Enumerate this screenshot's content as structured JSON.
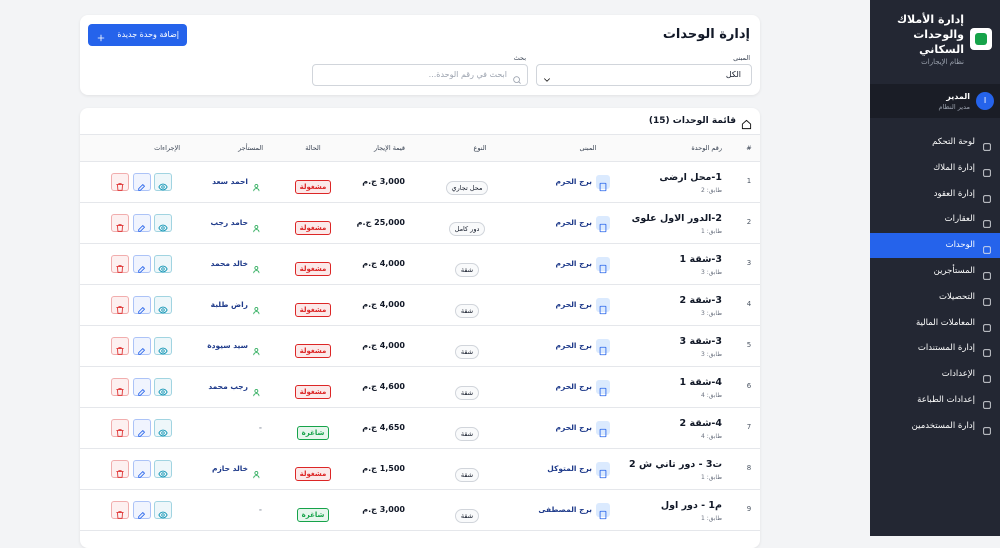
{
  "sidebar": {
    "title": "إدارة الأملاك والوحدات السكاني",
    "subtitle": "نظام الإيجارات",
    "user": {
      "initial": "I",
      "name": "المدير",
      "role": "مدير النظام"
    },
    "nav": [
      "لوحة التحكم",
      "إدارة الملاك",
      "إدارة العقود",
      "العقارات",
      "الوحدات",
      "المستأجرين",
      "التحصيلات",
      "المعاملات المالية",
      "إدارة المستندات",
      "الإعدادات",
      "إعدادات الطباعة",
      "إدارة المستخدمين"
    ],
    "active": 4
  },
  "header": {
    "title": "إدارة الوحدات",
    "add_button": "إضافة وحدة جديدة",
    "building_label": "المبنى",
    "building_value": "الكل",
    "search_label": "بحث",
    "search_placeholder": "ابحث في رقم الوحدة..."
  },
  "table": {
    "title": "قائمة الوحدات (15)",
    "columns": [
      "#",
      "رقم الوحدة",
      "المبنى",
      "النوع",
      "قيمة الإيجار",
      "الحالة",
      "المستأجر",
      "الإجراءات"
    ],
    "rows": [
      {
        "index": "1",
        "unit": "1-محل ارضى",
        "floor": "طابق: 2",
        "building": "برج الحرم",
        "type": "محل تجاري",
        "rent": "3,000 ج.م",
        "status": "مشغولة",
        "status_color": "#dc2626",
        "tenant": "احمد سعد"
      },
      {
        "index": "2",
        "unit": "2-الدور الاول علوى",
        "floor": "طابق: 1",
        "building": "برج الحرم",
        "type": "دور كامل",
        "rent": "25,000 ج.م",
        "status": "مشغولة",
        "status_color": "#dc2626",
        "tenant": "حامد رجب"
      },
      {
        "index": "3",
        "unit": "3-شقة 1",
        "floor": "طابق: 3",
        "building": "برج الحرم",
        "type": "شقة",
        "rent": "4,000 ج.م",
        "status": "مشغولة",
        "status_color": "#dc2626",
        "tenant": "خالد محمد"
      },
      {
        "index": "4",
        "unit": "3-شقة 2",
        "floor": "طابق: 3",
        "building": "برج الحرم",
        "type": "شقة",
        "rent": "4,000 ج.م",
        "status": "مشغولة",
        "status_color": "#dc2626",
        "tenant": "راض طلبة"
      },
      {
        "index": "5",
        "unit": "3-شقة 3",
        "floor": "طابق: 3",
        "building": "برج الحرم",
        "type": "شقة",
        "rent": "4,000 ج.م",
        "status": "مشغولة",
        "status_color": "#dc2626",
        "tenant": "سيد سيودة"
      },
      {
        "index": "6",
        "unit": "4-شقة 1",
        "floor": "طابق: 4",
        "building": "برج الحرم",
        "type": "شقة",
        "rent": "4,600 ج.م",
        "status": "مشغولة",
        "status_color": "#dc2626",
        "tenant": "رجب محمد"
      },
      {
        "index": "7",
        "unit": "4-شقة 2",
        "floor": "طابق: 4",
        "building": "برج الحرم",
        "type": "شقة",
        "rent": "4,650 ج.م",
        "status": "شاغرة",
        "status_color": "#16a34a",
        "tenant": "-"
      },
      {
        "index": "8",
        "unit": "ت3 - دور تاني ش 2",
        "floor": "طابق: 1",
        "building": "برج المتوكل",
        "type": "شقة",
        "rent": "1,500 ج.م",
        "status": "مشغولة",
        "status_color": "#dc2626",
        "tenant": "خالد حازم"
      },
      {
        "index": "9",
        "unit": "م1 - دور اول",
        "floor": "طابق: 1",
        "building": "برج المصطفى",
        "type": "شقة",
        "rent": "3,000 ج.م",
        "status": "شاغرة",
        "status_color": "#16a34a",
        "tenant": "-"
      }
    ]
  }
}
